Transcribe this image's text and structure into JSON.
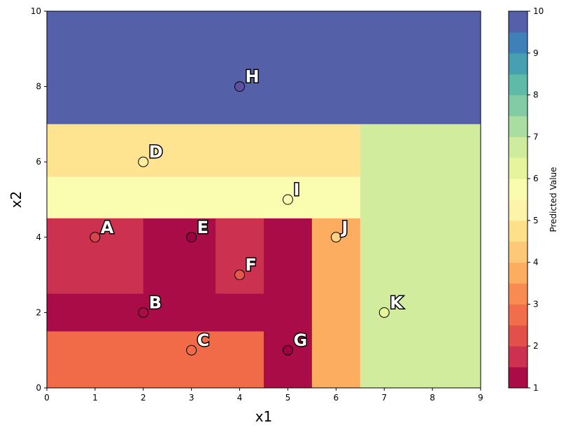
{
  "chart_data": {
    "type": "heatmap",
    "title": "",
    "xlabel": "x1",
    "ylabel": "x2",
    "xlim": [
      0,
      9
    ],
    "ylim": [
      0,
      10
    ],
    "xticks": [
      "0",
      "1",
      "2",
      "3",
      "4",
      "5",
      "6",
      "7",
      "8",
      "9"
    ],
    "yticks": [
      "0",
      "2",
      "4",
      "6",
      "8",
      "10"
    ],
    "grid": false,
    "colorbar": {
      "label": "Predicted Value",
      "range": [
        1,
        10
      ],
      "ticks": [
        "1",
        "2",
        "3",
        "4",
        "5",
        "6",
        "7",
        "8",
        "9",
        "10"
      ],
      "levels": [
        "#a90c46",
        "#cc3150",
        "#e2504a",
        "#f26d4b",
        "#f88b51",
        "#fdad60",
        "#fdc877",
        "#fee08b",
        "#fdf4aa",
        "#f9fbae",
        "#e5f49d",
        "#cfeb9e",
        "#a9dda2",
        "#82cba5",
        "#5fbaa8",
        "#47a0b2",
        "#3f80b9",
        "#5460a8"
      ]
    },
    "regions": [
      {
        "x": [
          0,
          9
        ],
        "y": [
          7,
          10
        ],
        "value": 10,
        "color": "#5460a8"
      },
      {
        "x": [
          6.5,
          9
        ],
        "y": [
          0,
          7
        ],
        "value": 7,
        "color": "#d0ec9c"
      },
      {
        "x": [
          0,
          6.5
        ],
        "y": [
          5.6,
          7
        ],
        "value": 5,
        "color": "#fee391"
      },
      {
        "x": [
          0,
          6.5
        ],
        "y": [
          4.5,
          5.6
        ],
        "value": 6,
        "color": "#fafcb0"
      },
      {
        "x": [
          5.5,
          6.5
        ],
        "y": [
          0,
          4.5
        ],
        "value": 4,
        "color": "#fdad60"
      },
      {
        "x": [
          0,
          5.5
        ],
        "y": [
          0,
          4.5
        ],
        "value": 1,
        "color": "#a90c46"
      },
      {
        "x": [
          0,
          2
        ],
        "y": [
          2.5,
          4.5
        ],
        "value": 2,
        "color": "#cc3150"
      },
      {
        "x": [
          3.5,
          4.5
        ],
        "y": [
          2.5,
          4.5
        ],
        "value": 2,
        "color": "#cc3150"
      },
      {
        "x": [
          0,
          4.5
        ],
        "y": [
          0,
          1.5
        ],
        "value": 3,
        "color": "#f26b48"
      }
    ],
    "points": [
      {
        "label": "A",
        "x": 1,
        "y": 4,
        "value": 2,
        "color": "#d7444e"
      },
      {
        "label": "B",
        "x": 2,
        "y": 2,
        "value": 1,
        "color": "#a90c46"
      },
      {
        "label": "C",
        "x": 3,
        "y": 1,
        "value": 3,
        "color": "#f26b48"
      },
      {
        "label": "D",
        "x": 2,
        "y": 6,
        "value": 5,
        "color": "#feec9f"
      },
      {
        "label": "E",
        "x": 3,
        "y": 4,
        "value": 1,
        "color": "#9e0142"
      },
      {
        "label": "F",
        "x": 4,
        "y": 3,
        "value": 2.5,
        "color": "#e4584b"
      },
      {
        "label": "G",
        "x": 5,
        "y": 1,
        "value": 1,
        "color": "#9e0142"
      },
      {
        "label": "H",
        "x": 4,
        "y": 8,
        "value": 10,
        "color": "#5e4fa2"
      },
      {
        "label": "I",
        "x": 5,
        "y": 5,
        "value": 5.5,
        "color": "#fbf8b0"
      },
      {
        "label": "J",
        "x": 6,
        "y": 4,
        "value": 4.5,
        "color": "#fed281"
      },
      {
        "label": "K",
        "x": 7,
        "y": 2,
        "value": 7,
        "color": "#e6f598"
      }
    ]
  }
}
